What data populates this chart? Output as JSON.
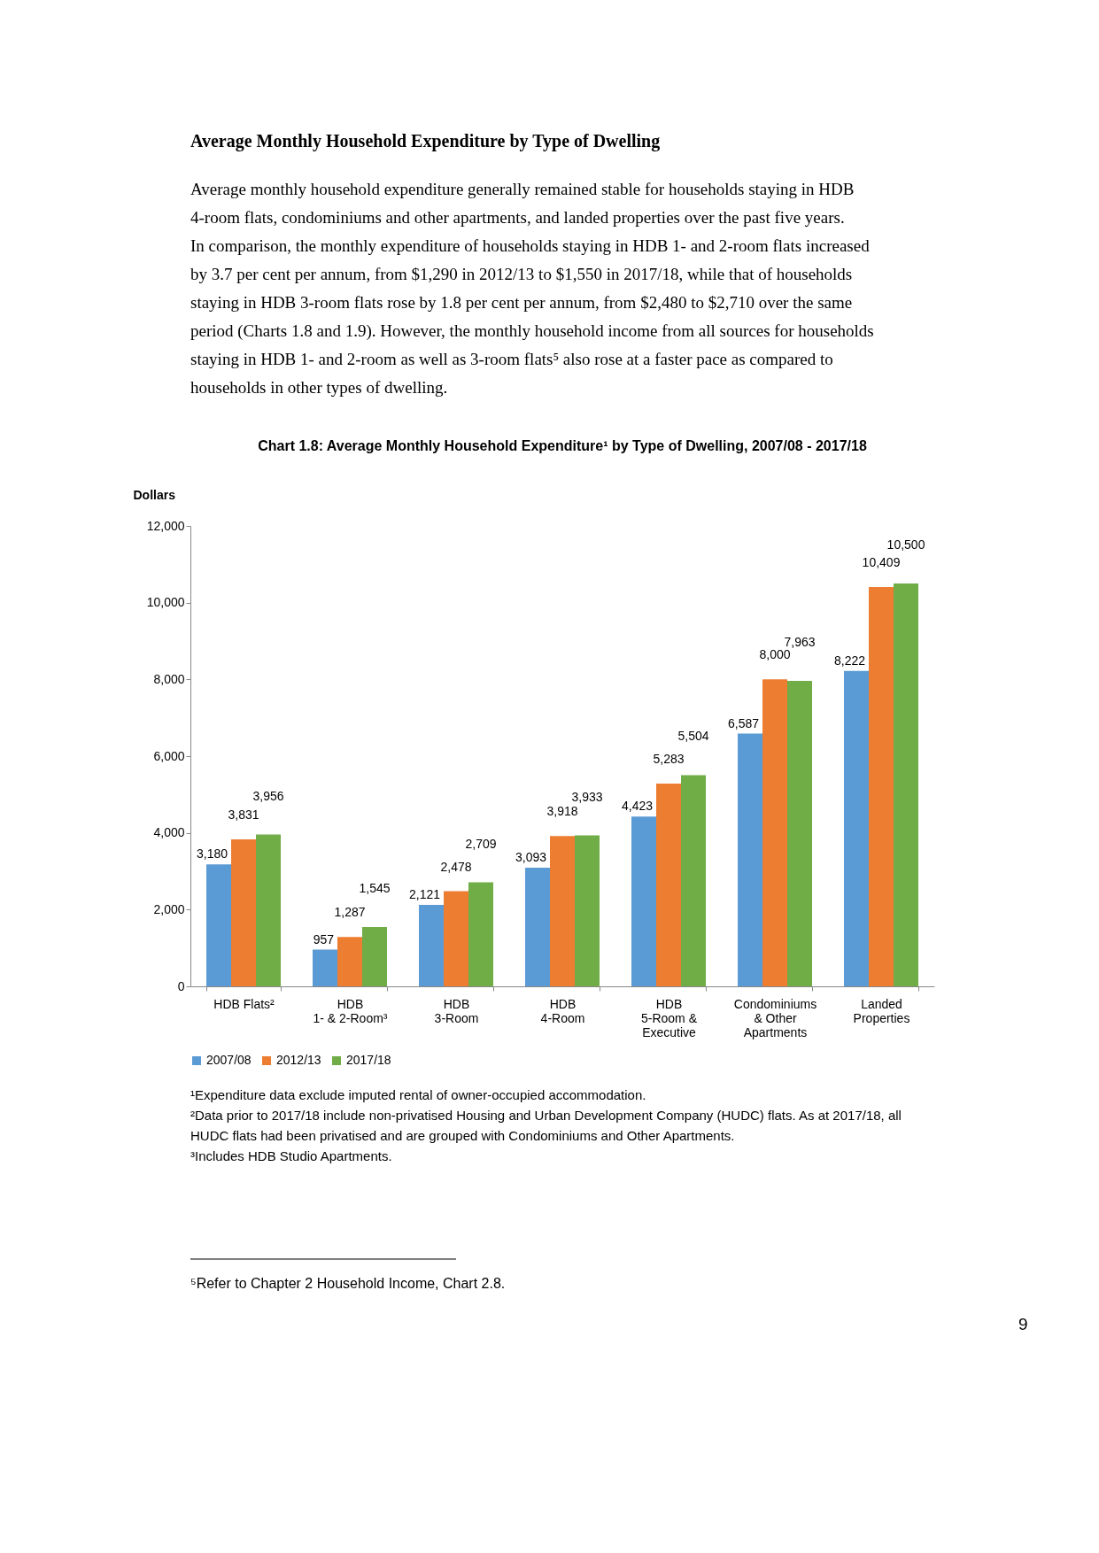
{
  "chart_data": {
    "type": "bar",
    "title": "Chart 1.8: Average Monthly Household Expenditure¹ by Type of Dwelling, 2007/08 - 2017/18",
    "ylabel": "Dollars",
    "categories": [
      "HDB Flats²",
      "HDB\n1- & 2-Room³",
      "HDB\n3-Room",
      "HDB\n4-Room",
      "HDB\n5-Room &\nExecutive",
      "Condominiums\n& Other\nApartments",
      "Landed\nProperties"
    ],
    "series": [
      {
        "name": "2007/08",
        "color": "#5b9bd5",
        "values": [
          3180,
          957,
          2121,
          3093,
          4423,
          6587,
          8222
        ],
        "value_labels": [
          "3,180",
          "957",
          "2,121",
          "3,093",
          "4,423",
          "6,587",
          "8,222"
        ]
      },
      {
        "name": "2012/13",
        "color": "#ed7d31",
        "values": [
          3831,
          1287,
          2478,
          3918,
          5283,
          8000,
          10409
        ],
        "value_labels": [
          "3,831",
          "1,287",
          "2,478",
          "3,918",
          "5,283",
          "8,000",
          "10,409"
        ]
      },
      {
        "name": "2017/18",
        "color": "#70ad47",
        "values": [
          3956,
          1545,
          2709,
          3933,
          5504,
          7963,
          10500
        ],
        "value_labels": [
          "3,956",
          "1,545",
          "2,709",
          "3,933",
          "5,504",
          "7,963",
          "10,500"
        ]
      }
    ],
    "ylim": [
      0,
      12000
    ],
    "yticks": [
      {
        "value": 0,
        "label": "0"
      },
      {
        "value": 2000,
        "label": "2,000"
      },
      {
        "value": 4000,
        "label": "4,000"
      },
      {
        "value": 6000,
        "label": "6,000"
      },
      {
        "value": 8000,
        "label": "8,000"
      },
      {
        "value": 10000,
        "label": "10,000"
      },
      {
        "value": 12000,
        "label": "12,000"
      }
    ],
    "grid": false,
    "legend": "bottom",
    "annotations": [
      "Average Monthly Household Expenditure by Type of Dwelling",
      "Average monthly household expenditure generally remained stable for households staying in HDB 4-room flats, condominiums and other apartments, and landed properties over the past five years. In comparison, the monthly expenditure of households staying in HDB 1- and 2-room flats increased by 3.7 per cent per annum, from $1,290 in 2012/13 to $1,550 in 2017/18, while that of households staying in HDB 3-room flats rose by 1.8 per cent per annum, from $2,480 to $2,710 over the same period (Charts 1.8 and 1.9). However, the monthly household income from all sources for households staying in HDB 1- and 2-room as well as 3-room flats⁵ also rose at a faster pace as compared to households in other types of dwelling.",
      "¹Expenditure data exclude imputed rental of owner-occupied accommodation.",
      "²Data prior to 2017/18 include non-privatised Housing and Urban Development Company (HUDC) flats. As at 2017/18, all HUDC flats had been privatised and are grouped with Condominiums and Other Apartments.",
      "³Includes HDB Studio Apartments.",
      "⁵Refer to Chapter 2 Household Income, Chart 2.8.",
      "9"
    ]
  }
}
